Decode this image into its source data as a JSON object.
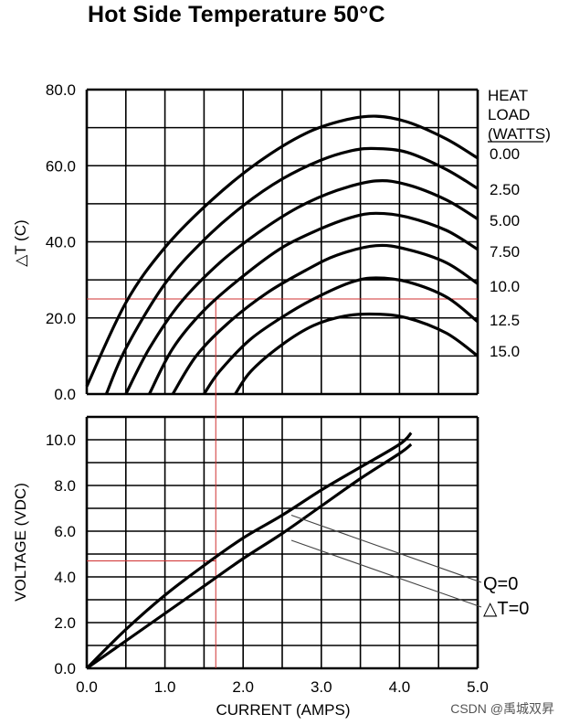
{
  "title": "Hot Side Temperature 50°C",
  "watermark": "CSDN @禹城双昇",
  "colors": {
    "curve": "#000000",
    "grid": "#000000",
    "guide": "#d03030",
    "thin_line": "#444444"
  },
  "chart_data": [
    {
      "type": "line",
      "title": "Hot Side Temperature 50°C",
      "xlabel": "",
      "ylabel": "△T (C)",
      "xlim": [
        0,
        5.0
      ],
      "ylim": [
        0,
        80.0
      ],
      "y_ticks": [
        "0.0",
        "20.0",
        "40.0",
        "60.0",
        "80.0"
      ],
      "grid": true,
      "legend_title": [
        "HEAT",
        "LOAD",
        "(WATTS)"
      ],
      "series": [
        {
          "name": "0.00",
          "points": [
            [
              0,
              2
            ],
            [
              0.5,
              24
            ],
            [
              1.0,
              38.5
            ],
            [
              1.6,
              51
            ],
            [
              2.2,
              61
            ],
            [
              2.8,
              68.5
            ],
            [
              3.3,
              72
            ],
            [
              3.7,
              73
            ],
            [
              4.1,
              71.5
            ],
            [
              4.6,
              67
            ],
            [
              5.0,
              62
            ]
          ]
        },
        {
          "name": "2.50",
          "points": [
            [
              0.25,
              0
            ],
            [
              0.5,
              12
            ],
            [
              1.0,
              29
            ],
            [
              1.5,
              40.5
            ],
            [
              2.0,
              49.5
            ],
            [
              2.5,
              56.5
            ],
            [
              3.0,
              61.5
            ],
            [
              3.4,
              64
            ],
            [
              3.7,
              64.5
            ],
            [
              4.1,
              63.5
            ],
            [
              4.6,
              59
            ],
            [
              5.0,
              54
            ]
          ]
        },
        {
          "name": "5.00",
          "points": [
            [
              0.5,
              0
            ],
            [
              0.8,
              12
            ],
            [
              1.2,
              24
            ],
            [
              1.7,
              34.5
            ],
            [
              2.2,
              42.5
            ],
            [
              2.7,
              49
            ],
            [
              3.2,
              53.5
            ],
            [
              3.7,
              56
            ],
            [
              4.1,
              55
            ],
            [
              4.6,
              51
            ],
            [
              5.0,
              46
            ]
          ]
        },
        {
          "name": "7.50",
          "points": [
            [
              0.8,
              0
            ],
            [
              1.1,
              12
            ],
            [
              1.5,
              22
            ],
            [
              2.0,
              31
            ],
            [
              2.5,
              38.5
            ],
            [
              3.0,
              43.5
            ],
            [
              3.4,
              46.5
            ],
            [
              3.7,
              47.5
            ],
            [
              4.1,
              46.5
            ],
            [
              4.6,
              43
            ],
            [
              5.0,
              38
            ]
          ]
        },
        {
          "name": "10.0",
          "points": [
            [
              1.1,
              0
            ],
            [
              1.4,
              10
            ],
            [
              1.8,
              18.5
            ],
            [
              2.3,
              26.5
            ],
            [
              2.8,
              32.5
            ],
            [
              3.2,
              36.5
            ],
            [
              3.7,
              39
            ],
            [
              4.1,
              38
            ],
            [
              4.6,
              34.5
            ],
            [
              5.0,
              29
            ]
          ]
        },
        {
          "name": "12.5",
          "points": [
            [
              1.5,
              0
            ],
            [
              1.7,
              6
            ],
            [
              2.1,
              14.5
            ],
            [
              2.6,
              21.5
            ],
            [
              3.0,
              26
            ],
            [
              3.4,
              29.5
            ],
            [
              3.7,
              30.5
            ],
            [
              4.1,
              29.5
            ],
            [
              4.6,
              25.5
            ],
            [
              5.0,
              19
            ]
          ]
        },
        {
          "name": "15.0",
          "points": [
            [
              1.9,
              0
            ],
            [
              2.1,
              6
            ],
            [
              2.5,
              13
            ],
            [
              2.9,
              18
            ],
            [
              3.3,
              20.5
            ],
            [
              3.7,
              21
            ],
            [
              4.1,
              20
            ],
            [
              4.6,
              16
            ],
            [
              5.0,
              10
            ]
          ]
        }
      ]
    },
    {
      "type": "line",
      "title": "",
      "xlabel": "CURRENT (AMPS)",
      "ylabel": "VOLTAGE (VDC)",
      "xlim": [
        0,
        5.0
      ],
      "ylim": [
        0,
        11.0
      ],
      "x_ticks": [
        "0.0",
        "1.0",
        "2.0",
        "3.0",
        "4.0",
        "5.0"
      ],
      "y_ticks": [
        "0.0",
        "2.0",
        "4.0",
        "6.0",
        "8.0",
        "10.0"
      ],
      "grid": true,
      "series": [
        {
          "name": "Q=0",
          "points": [
            [
              0,
              0
            ],
            [
              0.5,
              1.7
            ],
            [
              1.0,
              3.2
            ],
            [
              1.5,
              4.5
            ],
            [
              2.0,
              5.7
            ],
            [
              2.5,
              6.7
            ],
            [
              3.0,
              7.8
            ],
            [
              3.5,
              8.8
            ],
            [
              4.0,
              9.8
            ],
            [
              4.15,
              10.3
            ]
          ]
        },
        {
          "name": "△T=0",
          "points": [
            [
              0,
              0
            ],
            [
              0.5,
              1.2
            ],
            [
              1.0,
              2.4
            ],
            [
              1.5,
              3.6
            ],
            [
              2.0,
              4.8
            ],
            [
              2.5,
              5.9
            ],
            [
              3.0,
              7.1
            ],
            [
              3.5,
              8.3
            ],
            [
              4.0,
              9.4
            ],
            [
              4.15,
              9.8
            ]
          ]
        }
      ],
      "callouts": [
        {
          "label": "Q=0",
          "from": [
            2.5,
            6.7
          ]
        },
        {
          "label": "△T=0",
          "from": [
            2.5,
            5.6
          ]
        }
      ]
    }
  ],
  "guides": {
    "current": 1.65,
    "delta_t": 25,
    "voltage": 4.7
  }
}
